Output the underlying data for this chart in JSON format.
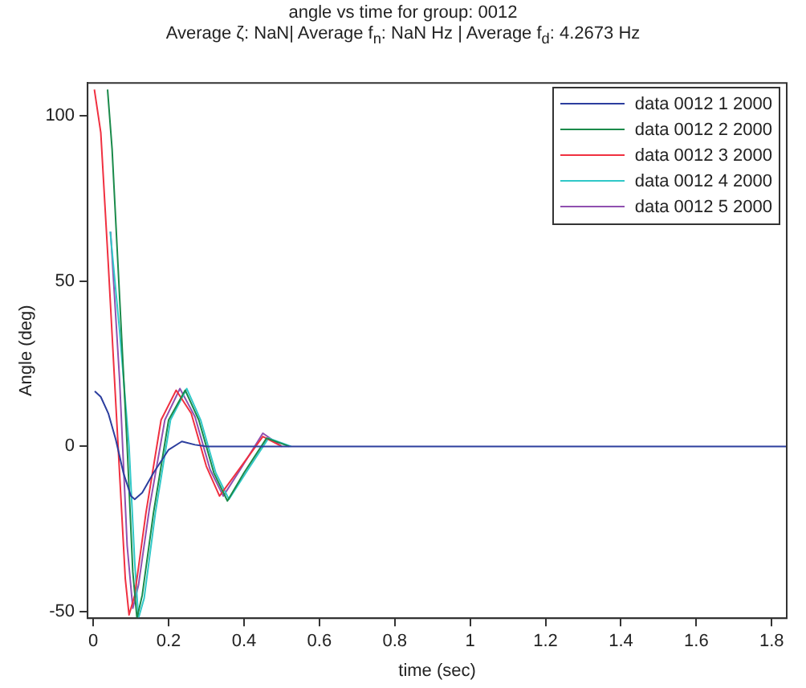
{
  "chart_data": {
    "type": "line",
    "title": "angle vs time for group: 0012",
    "subtitle": "Average ζ: NaN| Average f$_{n}$: NaN Hz | Average f$_{d}$: 4.2673 Hz",
    "xlabel": "time (sec)",
    "ylabel": "Angle (deg)",
    "xlim": [
      -0.015,
      1.84
    ],
    "ylim": [
      -52,
      110
    ],
    "xticks": [
      0,
      {
        "value": 0.2,
        "label": "0.2"
      },
      {
        "value": 0.4,
        "label": "0.4"
      },
      {
        "value": 0.6,
        "label": "0.6"
      },
      {
        "value": 0.8,
        "label": "0.8"
      },
      1,
      {
        "value": 1.2,
        "label": "1.2"
      },
      {
        "value": 1.4,
        "label": "1.4"
      },
      {
        "value": 1.6,
        "label": "1.6"
      },
      {
        "value": 1.8,
        "label": "1.8"
      }
    ],
    "yticks": [
      -50,
      0,
      50,
      100
    ],
    "grid": false,
    "legend": "top right",
    "marker": "none",
    "line_style": "solid",
    "series": [
      {
        "name": "data 0012 1 2000",
        "color": "#2c3e9e",
        "x": [
          0.004,
          0.02,
          0.04,
          0.06,
          0.08,
          0.1,
          0.11,
          0.13,
          0.16,
          0.2,
          0.235,
          0.27,
          0.3,
          0.4,
          0.6,
          1.0,
          1.4,
          1.84
        ],
        "values": [
          16.7,
          15,
          10,
          2,
          -8,
          -15,
          -16,
          -14,
          -8,
          -1,
          1.5,
          0.5,
          0,
          0,
          0,
          0,
          0,
          0
        ]
      },
      {
        "name": "data 0012 2 2000",
        "color": "#1a8a4a",
        "x": [
          0.038,
          0.05,
          0.07,
          0.09,
          0.105,
          0.116,
          0.13,
          0.16,
          0.2,
          0.244,
          0.28,
          0.32,
          0.356,
          0.4,
          0.46,
          0.52
        ],
        "values": [
          108,
          90,
          45,
          0,
          -38,
          -52,
          -45,
          -20,
          8,
          17,
          8,
          -8,
          -16.5,
          -8,
          2.5,
          0
        ]
      },
      {
        "name": "data 0012 3 2000",
        "color": "#f03040",
        "x": [
          0.003,
          0.02,
          0.04,
          0.066,
          0.085,
          0.095,
          0.11,
          0.14,
          0.18,
          0.22,
          0.26,
          0.3,
          0.335,
          0.38,
          0.45,
          0.5
        ],
        "values": [
          108,
          95,
          55,
          0,
          -40,
          -51,
          -45,
          -20,
          8,
          17,
          10,
          -6,
          -15,
          -8,
          3,
          0
        ]
      },
      {
        "name": "data 0012 4 2000",
        "color": "#30c8c8",
        "x": [
          0.045,
          0.07,
          0.095,
          0.11,
          0.12,
          0.135,
          0.165,
          0.205,
          0.248,
          0.285,
          0.325,
          0.36,
          0.405,
          0.465,
          0.525
        ],
        "values": [
          65,
          35,
          0,
          -35,
          -52,
          -46,
          -20,
          8,
          17.5,
          8,
          -8,
          -16,
          -8,
          2.5,
          0
        ]
      },
      {
        "name": "data 0012 5 2000",
        "color": "#9050b0",
        "x": [
          0.046,
          0.07,
          0.09,
          0.105,
          0.12,
          0.15,
          0.19,
          0.23,
          0.27,
          0.31,
          0.345,
          0.39,
          0.45,
          0.5
        ],
        "values": [
          65,
          20,
          -30,
          -49,
          -42,
          -18,
          8,
          17.5,
          9,
          -7,
          -15,
          -7,
          4,
          0
        ]
      }
    ]
  }
}
